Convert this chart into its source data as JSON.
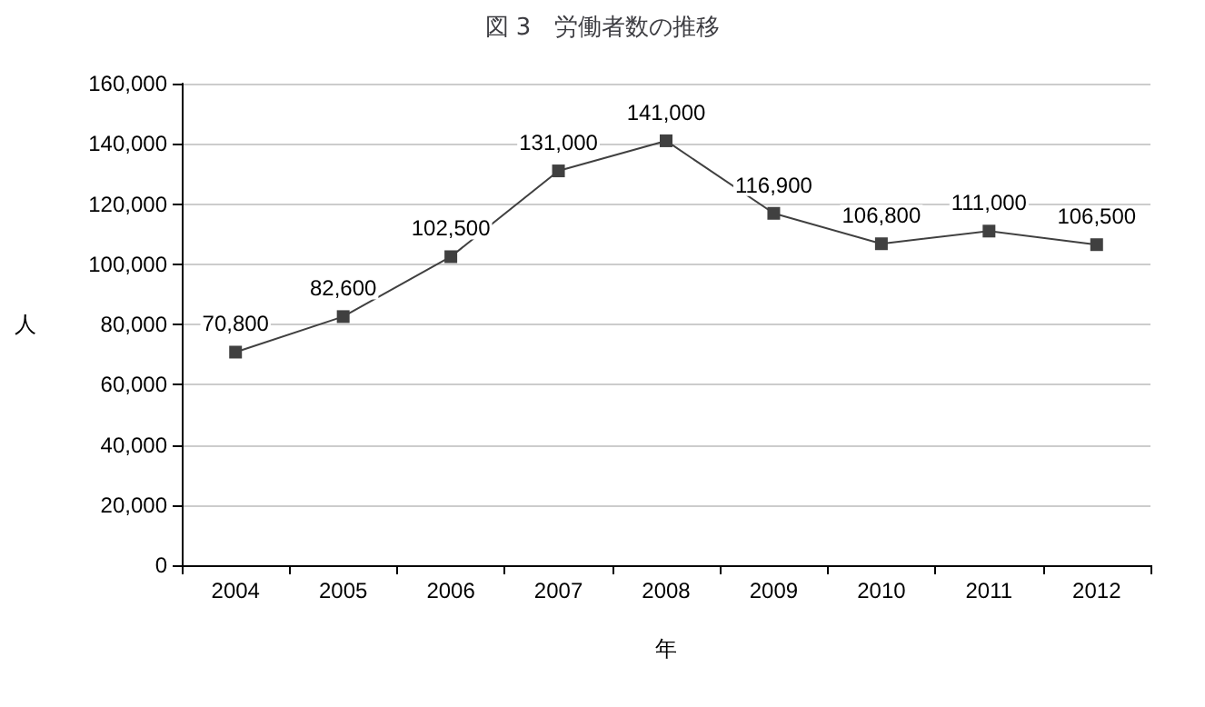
{
  "chart_data": {
    "type": "line",
    "title": "図 3　労働者数の推移",
    "xlabel": "年",
    "ylabel": "人",
    "categories": [
      "2004",
      "2005",
      "2006",
      "2007",
      "2008",
      "2009",
      "2010",
      "2011",
      "2012"
    ],
    "series": [
      {
        "color": "#404040",
        "values": [
          70800,
          82600,
          102500,
          131000,
          141000,
          116900,
          106800,
          111000,
          106500
        ],
        "value_labels": [
          "70,800",
          "82,600",
          "102,500",
          "131,000",
          "141,000",
          "116,900",
          "106,800",
          "111,000",
          "106,500"
        ]
      }
    ],
    "ylim": [
      0,
      160000
    ],
    "yticks": [
      0,
      {
        "value": 20000,
        "label": "20,000"
      },
      {
        "value": 40000,
        "label": "40,000"
      },
      {
        "value": 60000,
        "label": "60,000"
      },
      {
        "value": 80000,
        "label": "80,000"
      },
      {
        "value": 100000,
        "label": "100,000"
      },
      {
        "value": 120000,
        "label": "120,000"
      },
      {
        "value": 140000,
        "label": "140,000"
      },
      {
        "value": 160000,
        "label": "160,000"
      }
    ],
    "grid": "y",
    "marker": "square",
    "line_style": "solid"
  }
}
